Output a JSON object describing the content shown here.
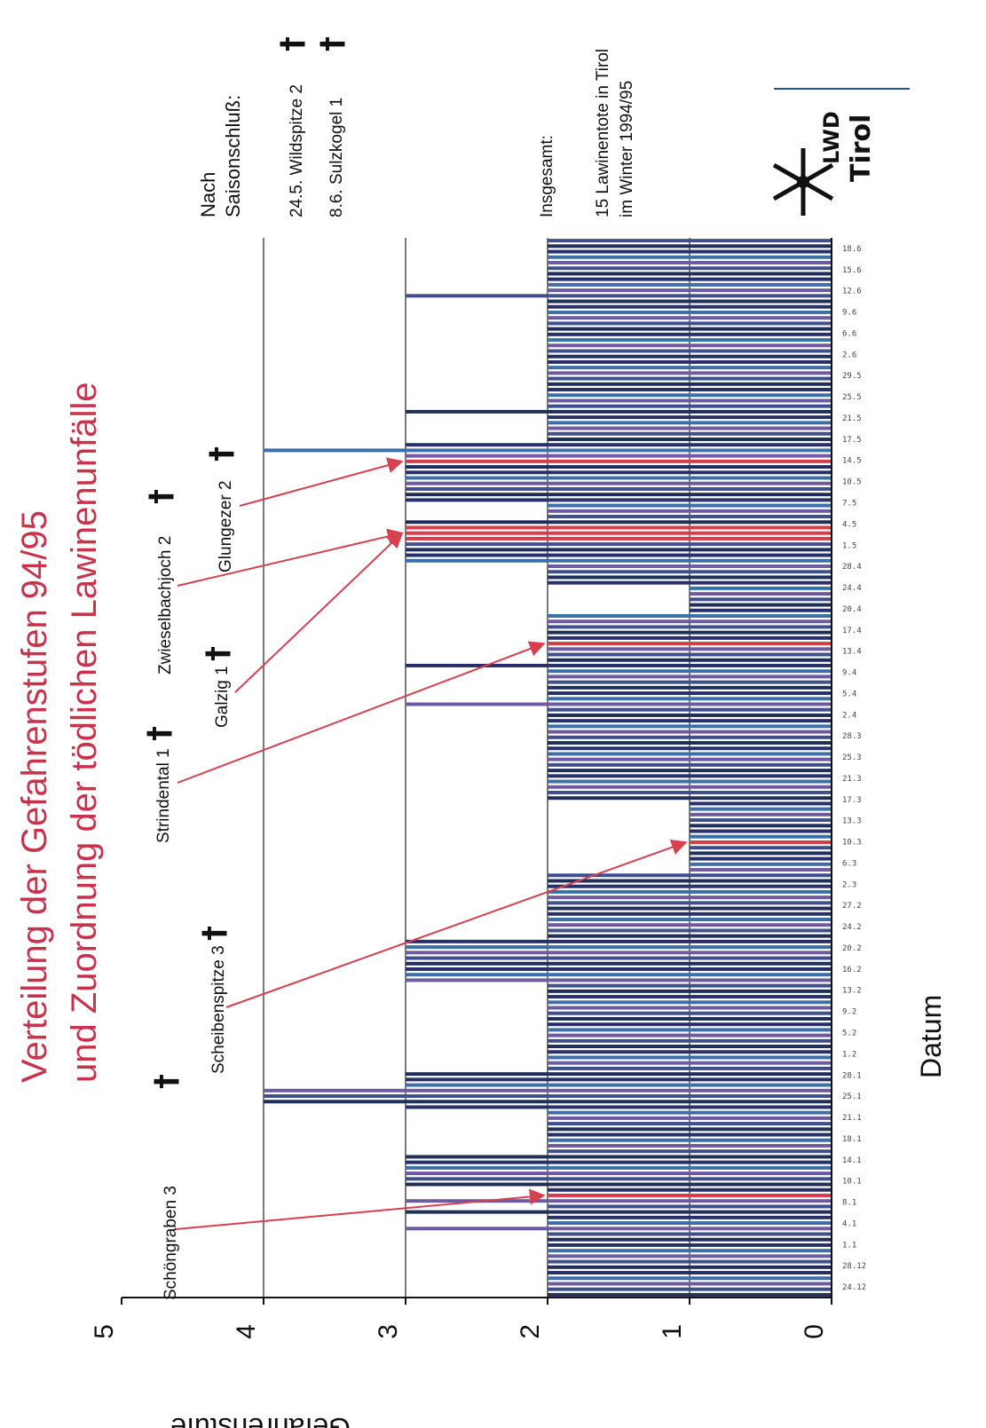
{
  "chart_data": {
    "type": "bar",
    "title": "Verteilung der Gefahrenstufen 94/95",
    "subtitle": "und Zuordnung der tödlichen Lawinenunfälle",
    "xlabel": "Datum",
    "ylabel": "Gefahrenstufe",
    "ylim": [
      0,
      5
    ],
    "yticks": [
      "0",
      "1",
      "2",
      "3",
      "4",
      "5"
    ],
    "grid": "horizontal",
    "values": [
      2,
      2,
      2,
      2,
      2,
      2,
      2,
      2,
      2,
      2,
      2,
      2,
      3,
      2,
      2,
      3,
      2,
      3,
      2,
      2,
      3,
      3,
      3,
      3,
      3,
      3,
      2,
      2,
      2,
      2,
      2,
      2,
      2,
      2,
      3,
      4,
      4,
      4,
      3,
      3,
      3,
      2,
      2,
      2,
      2,
      2,
      2,
      2,
      2,
      2,
      2,
      2,
      2,
      2,
      2,
      2,
      2,
      3,
      3,
      3,
      3,
      3,
      3,
      3,
      3,
      2,
      2,
      2,
      2,
      2,
      2,
      2,
      2,
      2,
      2,
      2,
      2,
      1,
      1,
      1,
      1,
      1,
      1,
      1,
      1,
      1,
      1,
      1,
      1,
      1,
      2,
      2,
      2,
      2,
      2,
      2,
      2,
      2,
      2,
      2,
      2,
      2,
      2,
      2,
      2,
      2,
      2,
      3,
      2,
      2,
      2,
      2,
      2,
      2,
      3,
      2,
      2,
      2,
      2,
      2,
      2,
      2,
      2,
      2,
      1,
      1,
      1,
      1,
      1,
      2,
      2,
      2,
      2,
      3,
      3,
      3,
      3,
      3,
      3,
      3,
      3,
      2,
      2,
      2,
      3,
      3,
      3,
      3,
      3,
      3,
      3,
      3,
      3,
      4,
      3,
      2,
      2,
      2,
      2,
      2,
      3,
      2,
      2,
      2,
      2,
      2,
      2,
      2,
      2,
      2,
      2,
      2,
      2,
      2,
      2,
      2,
      2,
      2,
      2,
      2,
      2,
      3,
      2,
      2,
      2,
      2,
      2,
      2,
      2,
      2,
      2,
      2
    ],
    "highlighted_bars": [
      18,
      82,
      118,
      137,
      138,
      139,
      151
    ],
    "x_tick_labels": [
      "24.12",
      "28.12",
      "1.1",
      "4.1",
      "8.1",
      "10.1",
      "14.1",
      "18.1",
      "21.1",
      "25.1",
      "28.1",
      "1.2",
      "5.2",
      "9.2",
      "13.2",
      "16.2",
      "20.2",
      "24.2",
      "27.2",
      "2.3",
      "6.3",
      "10.3",
      "13.3",
      "17.3",
      "21.3",
      "25.3",
      "28.3",
      "2.4",
      "5.4",
      "9.4",
      "13.4",
      "17.4",
      "20.4",
      "24.4",
      "28.4",
      "1.5",
      "4.5",
      "7.5",
      "10.5",
      "14.5",
      "17.5",
      "21.5",
      "25.5",
      "29.5",
      "2.6",
      "6.6",
      "9.6",
      "12.6",
      "15.6",
      "18.6"
    ],
    "annotations": [
      {
        "label": "Schöngraben 3",
        "target_index": 18
      },
      {
        "label": "Scheibenspitze 3",
        "target_index": 82
      },
      {
        "label": "Strindental 1",
        "target_index": 118
      },
      {
        "label": "Galzig 1",
        "target_index": 138
      },
      {
        "label": "Zwieselbachjoch 2",
        "target_index": 138
      },
      {
        "label": "Glungezer 2",
        "target_index": 151
      }
    ],
    "notes": {
      "after_season_heading_1": "Nach",
      "after_season_heading_2": "Saisonschluß:",
      "after_season_1": "24.5. Wildspitze 2",
      "after_season_2": "8.6.  Sulzkogel 1",
      "total_heading": "Insgesamt:",
      "total_1": "15 Lawinentote in Tirol",
      "total_2": "im Winter 1994/95"
    },
    "colors": {
      "bars": [
        "#1f2f5a",
        "#3f4f8c",
        "#6d5aa0",
        "#3c6fa8",
        "#27306b"
      ],
      "highlight": "#d93a4c",
      "arrow": "#d6404f",
      "title": "#c8324a"
    }
  },
  "logo": {
    "text_top": "LWD",
    "text_bottom": "Tirol",
    "icon": "snowflake-icon"
  }
}
